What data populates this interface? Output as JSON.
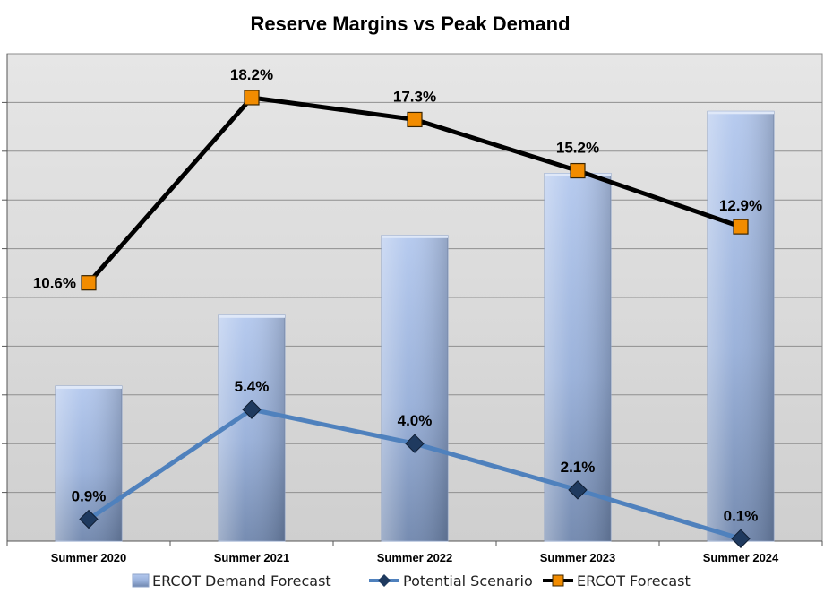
{
  "chart_data": {
    "type": "bar",
    "title": "Reserve Margins vs Peak Demand",
    "categories": [
      "Summer 2020",
      "Summer 2021",
      "Summer 2022",
      "Summer 2023",
      "Summer 2024"
    ],
    "series": [
      {
        "name": "ERCOT Demand Forecast",
        "type": "bar",
        "axis": "secondary",
        "values": [
          3.5,
          5.1,
          6.9,
          8.3,
          9.7
        ],
        "color": "#9fb8e6"
      },
      {
        "name": "Potential Scenario",
        "type": "line",
        "axis": "primary",
        "values": [
          0.9,
          5.4,
          4.0,
          2.1,
          0.1
        ],
        "data_labels": [
          "0.9%",
          "5.4%",
          "4.0%",
          "2.1%",
          "0.1%"
        ],
        "color": "#4f81bd",
        "marker": "diamond",
        "marker_color": "#1f3a5f"
      },
      {
        "name": "ERCOT Forecast",
        "type": "line",
        "axis": "primary",
        "values": [
          10.6,
          18.2,
          17.3,
          15.2,
          12.9
        ],
        "data_labels": [
          "10.6%",
          "18.2%",
          "17.3%",
          "15.2%",
          "12.9%"
        ],
        "color": "#000000",
        "marker": "square",
        "marker_color": "#f28c00"
      }
    ],
    "primary_ylim": [
      0,
      20
    ],
    "secondary_ylim": [
      0,
      11
    ],
    "grid": true,
    "legend_position": "bottom",
    "plot_background": "#d9d9d9"
  }
}
